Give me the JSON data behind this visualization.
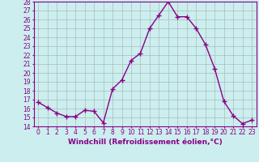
{
  "x": [
    0,
    1,
    2,
    3,
    4,
    5,
    6,
    7,
    8,
    9,
    10,
    11,
    12,
    13,
    14,
    15,
    16,
    17,
    18,
    19,
    20,
    21,
    22,
    23
  ],
  "y": [
    16.7,
    16.1,
    15.5,
    15.1,
    15.1,
    15.8,
    15.7,
    14.4,
    18.2,
    19.2,
    21.4,
    22.2,
    25.0,
    26.5,
    28.0,
    26.3,
    26.3,
    25.0,
    23.2,
    20.5,
    16.8,
    15.2,
    14.3,
    14.7
  ],
  "line_color": "#880088",
  "marker": "+",
  "marker_size": 4,
  "linewidth": 1.0,
  "bg_color": "#cceeee",
  "grid_color": "#aabbbb",
  "xlabel": "Windchill (Refroidissement éolien,°C)",
  "ylabel": "",
  "ylim": [
    14,
    28
  ],
  "xlim": [
    -0.5,
    23.5
  ],
  "yticks": [
    14,
    15,
    16,
    17,
    18,
    19,
    20,
    21,
    22,
    23,
    24,
    25,
    26,
    27,
    28
  ],
  "xticks": [
    0,
    1,
    2,
    3,
    4,
    5,
    6,
    7,
    8,
    9,
    10,
    11,
    12,
    13,
    14,
    15,
    16,
    17,
    18,
    19,
    20,
    21,
    22,
    23
  ],
  "tick_fontsize": 5.5,
  "xlabel_fontsize": 6.5,
  "tick_color": "#880088",
  "spine_color": "#880088"
}
